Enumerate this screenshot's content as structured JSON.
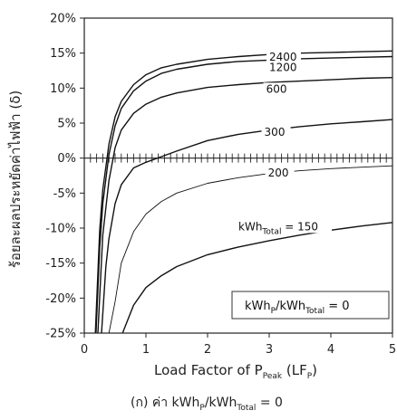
{
  "chart_data": {
    "type": "line",
    "xlabel": {
      "main": "Load Factor of P",
      "sub1": "Peak",
      "mid": " (LF",
      "sub2": "P",
      "end": ")"
    },
    "ylabel": "ร้อยละผลประหยัดค่าไฟฟ้า (δ)",
    "xlim": [
      0,
      5
    ],
    "ylim": [
      -25,
      20
    ],
    "xticks": [
      "0",
      "1",
      "2",
      "3",
      "4",
      "5"
    ],
    "yticks": [
      "20%",
      "15%",
      "10%",
      "5%",
      "0%",
      "-5%",
      "-10%",
      "-15%",
      "-20%",
      "-25%"
    ],
    "grid": false,
    "annotation_box": {
      "p1": "kWh",
      "s1": "P",
      "p2": "/kWh",
      "s2": "Total",
      "p3": " = 0"
    },
    "caption": {
      "p1": "(ก) ค่า kWh",
      "s1": "P",
      "p2": "/kWh",
      "s2": "Total",
      "p3": " = 0"
    },
    "series": [
      {
        "name": "2400",
        "label_prefix": "",
        "label_sub": "",
        "label_suffix": "2400",
        "x": [
          0.18,
          0.25,
          0.3,
          0.4,
          0.5,
          0.6,
          0.8,
          1.0,
          1.25,
          1.5,
          2.0,
          2.5,
          3.0,
          3.5,
          4.0,
          4.5,
          5.0
        ],
        "y": [
          -25.0,
          -10.3,
          -4.5,
          2.0,
          5.9,
          8.1,
          10.5,
          11.9,
          12.9,
          13.4,
          14.1,
          14.5,
          14.8,
          15.0,
          15.1,
          15.2,
          15.3
        ]
      },
      {
        "name": "1200",
        "label_prefix": "",
        "label_sub": "",
        "label_suffix": "1200",
        "x": [
          0.19,
          0.25,
          0.3,
          0.4,
          0.5,
          0.6,
          0.8,
          1.0,
          1.25,
          1.5,
          2.0,
          2.5,
          3.0,
          3.5,
          4.0,
          4.5,
          5.0
        ],
        "y": [
          -25.0,
          -12.8,
          -6.5,
          0.5,
          4.6,
          7.1,
          9.6,
          11.0,
          12.1,
          12.7,
          13.4,
          13.8,
          14.0,
          14.2,
          14.3,
          14.4,
          14.5
        ]
      },
      {
        "name": "600",
        "label_prefix": "",
        "label_sub": "",
        "label_suffix": "600",
        "x": [
          0.22,
          0.3,
          0.4,
          0.5,
          0.6,
          0.8,
          1.0,
          1.25,
          1.5,
          2.0,
          2.5,
          3.0,
          3.5,
          4.0,
          4.5,
          5.0
        ],
        "y": [
          -25.0,
          -11.0,
          -3.2,
          1.5,
          4.0,
          6.4,
          7.7,
          8.7,
          9.3,
          10.1,
          10.5,
          10.8,
          11.0,
          11.2,
          11.4,
          11.5
        ]
      },
      {
        "name": "300",
        "label_prefix": "",
        "label_sub": "",
        "label_suffix": "300",
        "x": [
          0.28,
          0.35,
          0.4,
          0.5,
          0.6,
          0.8,
          1.0,
          1.25,
          1.5,
          2.0,
          2.5,
          3.0,
          3.5,
          4.0,
          4.5,
          5.0
        ],
        "y": [
          -25.0,
          -15.5,
          -11.5,
          -6.5,
          -3.8,
          -1.4,
          -0.6,
          0.2,
          1.0,
          2.5,
          3.4,
          4.0,
          4.5,
          4.9,
          5.2,
          5.5
        ]
      },
      {
        "name": "200",
        "label_prefix": "",
        "label_sub": "",
        "label_suffix": "200",
        "x": [
          0.4,
          0.5,
          0.6,
          0.8,
          1.0,
          1.25,
          1.5,
          2.0,
          2.5,
          3.0,
          3.5,
          4.0,
          4.5,
          5.0
        ],
        "y": [
          -25.0,
          -20.5,
          -15.0,
          -10.5,
          -8.0,
          -6.2,
          -5.0,
          -3.6,
          -2.8,
          -2.2,
          -1.8,
          -1.5,
          -1.3,
          -1.1
        ]
      },
      {
        "name": "150",
        "label_prefix": "kWh",
        "label_sub": "Total",
        "label_suffix": " = 150",
        "x": [
          0.62,
          0.8,
          1.0,
          1.25,
          1.5,
          2.0,
          2.5,
          3.0,
          3.5,
          4.0,
          4.5,
          5.0
        ],
        "y": [
          -25.0,
          -21.0,
          -18.5,
          -16.8,
          -15.5,
          -13.8,
          -12.7,
          -11.8,
          -11.0,
          -10.3,
          -9.7,
          -9.2
        ]
      }
    ]
  }
}
